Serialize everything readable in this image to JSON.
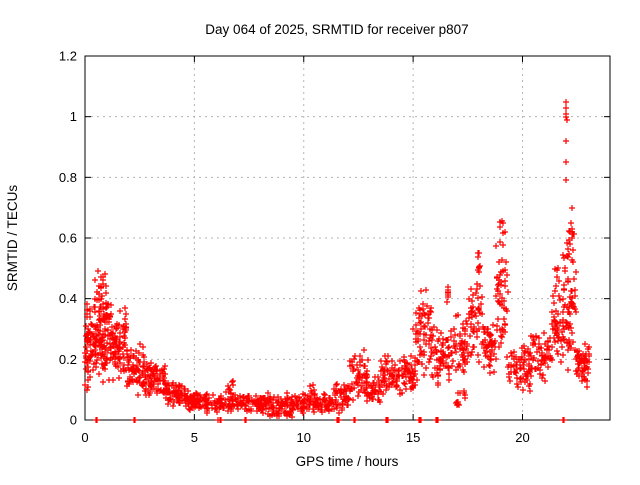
{
  "chart_data": {
    "type": "scatter",
    "title": "Day 064 of 2025, SRMTID for receiver p807",
    "xlabel": "GPS time / hours",
    "ylabel": "SRMTID / TECUs",
    "xlim": [
      0,
      24
    ],
    "ylim": [
      0,
      1.2
    ],
    "xticks": [
      0,
      5,
      10,
      15,
      20
    ],
    "xtick_labels": [
      "0",
      "5",
      "10",
      "15",
      "20"
    ],
    "yticks": [
      0,
      0.2,
      0.4,
      0.6,
      0.8,
      1.0,
      1.2
    ],
    "ytick_labels": [
      "0",
      "0.2",
      "0.4",
      "0.6",
      "0.8",
      "1",
      "1.2"
    ],
    "grid": true,
    "grid_style": "dashed",
    "legend_position": "none",
    "marker": "plus",
    "marker_color": "#ff0000",
    "series_name": "SRMTID",
    "density_bands_format": "[hour_start, hour_end, y_min_TECU, y_max_TECU, n_points]",
    "density_bands": [
      [
        0.0,
        0.15,
        0.08,
        0.3,
        14
      ],
      [
        0.05,
        1.1,
        0.12,
        0.44,
        150
      ],
      [
        0.3,
        1.0,
        0.4,
        0.5,
        12
      ],
      [
        1.1,
        1.9,
        0.12,
        0.38,
        90
      ],
      [
        1.9,
        2.7,
        0.08,
        0.26,
        70
      ],
      [
        2.7,
        3.7,
        0.06,
        0.2,
        80
      ],
      [
        3.7,
        4.7,
        0.04,
        0.13,
        80
      ],
      [
        4.7,
        5.5,
        0.03,
        0.1,
        70
      ],
      [
        5.5,
        11.4,
        0.02,
        0.09,
        330
      ],
      [
        6.4,
        6.9,
        0.08,
        0.13,
        8
      ],
      [
        10.2,
        10.6,
        0.07,
        0.12,
        6
      ],
      [
        8.0,
        9.5,
        0.01,
        0.03,
        20
      ],
      [
        11.4,
        12.1,
        0.02,
        0.12,
        45
      ],
      [
        12.1,
        13.0,
        0.05,
        0.22,
        60
      ],
      [
        13.0,
        13.5,
        0.05,
        0.15,
        35
      ],
      [
        13.5,
        14.4,
        0.08,
        0.22,
        60
      ],
      [
        14.4,
        15.1,
        0.08,
        0.24,
        50
      ],
      [
        15.1,
        15.95,
        0.12,
        0.43,
        70
      ],
      [
        15.95,
        16.7,
        0.1,
        0.32,
        55
      ],
      [
        16.55,
        16.8,
        0.38,
        0.44,
        6
      ],
      [
        16.7,
        17.5,
        0.13,
        0.36,
        55
      ],
      [
        16.9,
        17.45,
        0.03,
        0.1,
        12
      ],
      [
        17.5,
        18.15,
        0.15,
        0.5,
        45
      ],
      [
        17.9,
        18.05,
        0.45,
        0.56,
        6
      ],
      [
        18.15,
        18.75,
        0.14,
        0.36,
        45
      ],
      [
        18.75,
        19.35,
        0.18,
        0.58,
        50
      ],
      [
        18.95,
        19.25,
        0.55,
        0.66,
        8
      ],
      [
        19.35,
        20.35,
        0.08,
        0.26,
        65
      ],
      [
        20.35,
        21.35,
        0.12,
        0.3,
        65
      ],
      [
        21.35,
        21.85,
        0.14,
        0.45,
        40
      ],
      [
        21.5,
        21.7,
        0.42,
        0.52,
        6
      ],
      [
        21.85,
        22.45,
        0.15,
        0.6,
        70
      ],
      [
        22.0,
        22.35,
        0.55,
        0.72,
        10
      ],
      [
        22.45,
        23.05,
        0.1,
        0.28,
        60
      ]
    ],
    "outlier_points_format": "[hour, TECU]",
    "outlier_points": [
      [
        0.6,
        0.49
      ],
      [
        0.75,
        0.47
      ],
      [
        0.82,
        0.45
      ],
      [
        1.2,
        0.38
      ],
      [
        6.7,
        0.125
      ],
      [
        10.4,
        0.115
      ],
      [
        12.75,
        0.23
      ],
      [
        15.0,
        0.3
      ],
      [
        15.6,
        0.43
      ],
      [
        16.6,
        0.44
      ],
      [
        17.95,
        0.55
      ],
      [
        18.0,
        0.5
      ],
      [
        19.05,
        0.655
      ],
      [
        19.2,
        0.62
      ],
      [
        21.6,
        0.5
      ],
      [
        22.0,
        1.05
      ],
      [
        22.0,
        1.03
      ],
      [
        22.0,
        1.01
      ],
      [
        22.0,
        1.0
      ],
      [
        22.02,
        0.99
      ],
      [
        22.0,
        0.92
      ],
      [
        22.0,
        0.85
      ],
      [
        22.0,
        0.79
      ],
      [
        22.25,
        0.6
      ],
      [
        22.3,
        0.56
      ]
    ],
    "zero_line_points_hours": [
      0.5,
      0.55,
      2.25,
      2.3,
      6.1,
      6.15,
      6.2,
      7.3,
      7.35,
      11.5,
      11.55,
      11.6,
      12.3,
      12.35,
      13.75,
      13.8,
      13.85,
      15.25,
      15.3,
      15.35,
      16.05,
      16.1,
      16.15,
      21.85,
      21.9
    ]
  },
  "colors": {
    "background": "#ffffff",
    "border": "#000000",
    "grid": "#b3b3b3",
    "text": "#000000",
    "data": "#ff0000"
  }
}
